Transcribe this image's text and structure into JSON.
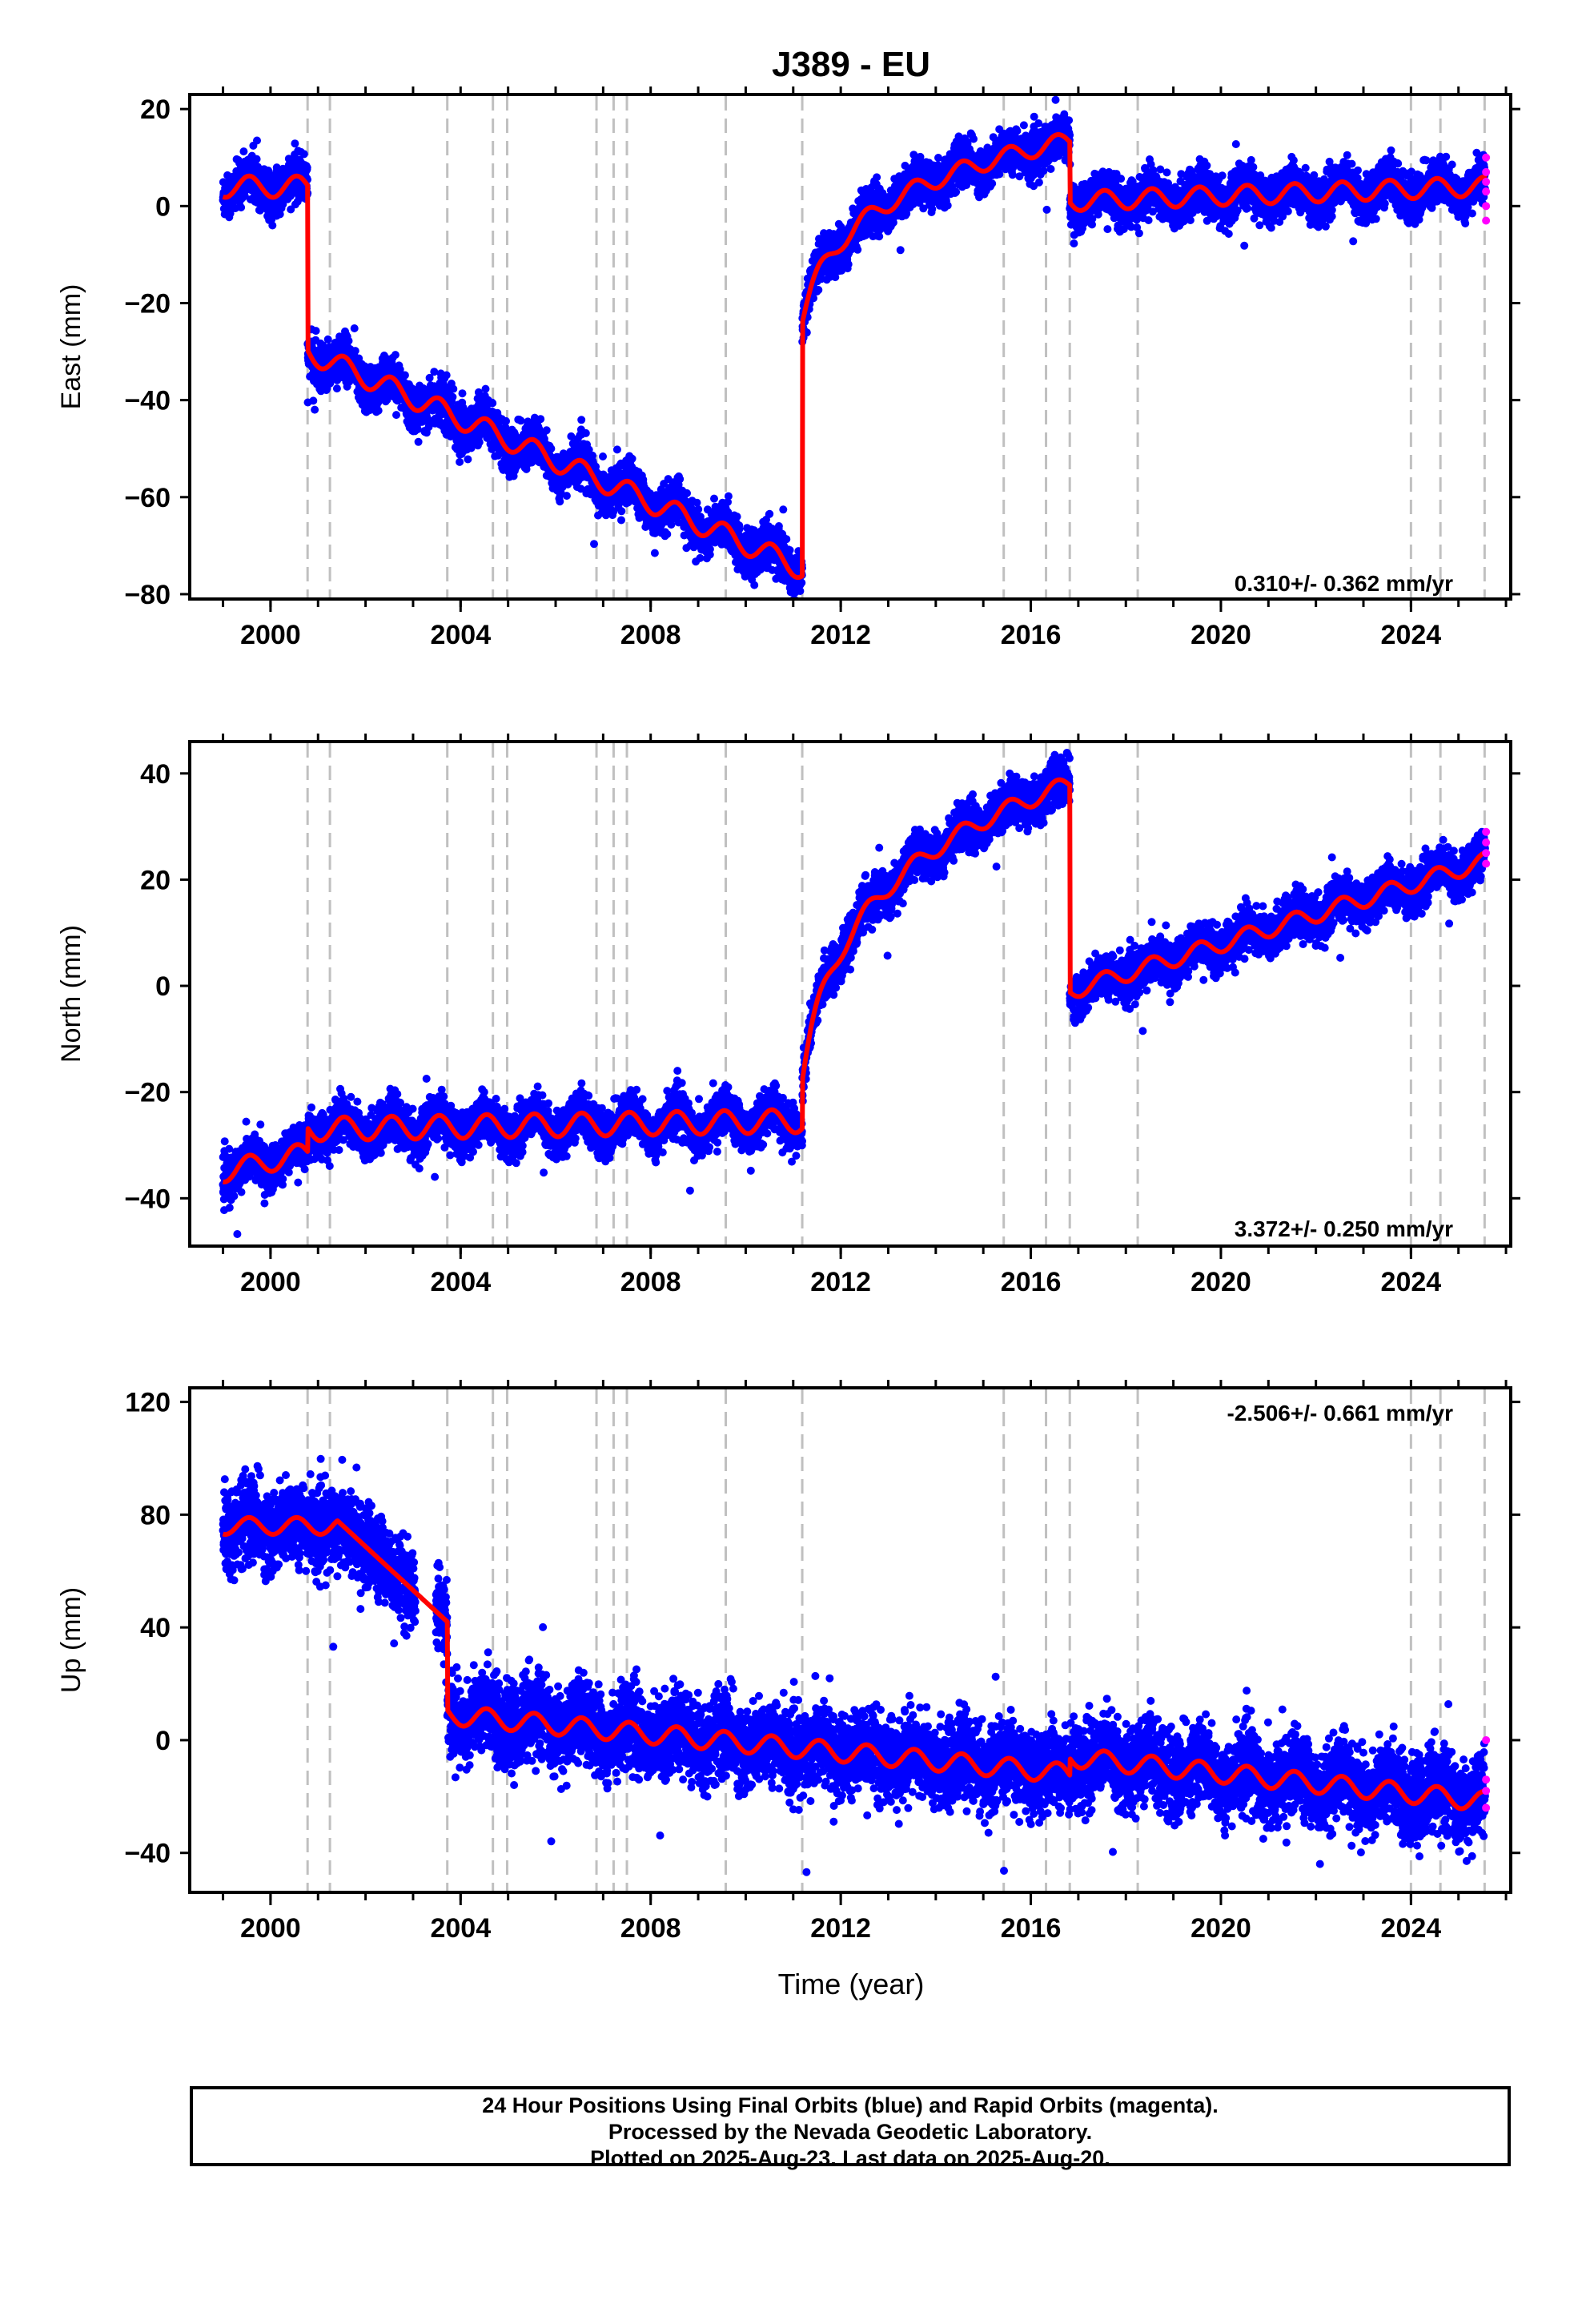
{
  "title": "J389 - EU",
  "xlabel": "Time (year)",
  "caption": [
    "24 Hour Positions Using Final Orbits (blue) and Rapid Orbits (magenta).",
    "Processed by the Nevada Geodetic Laboratory.",
    "Plotted on 2025-Aug-23. Last data on 2025-Aug-20."
  ],
  "colors": {
    "final": "#0000ff",
    "rapid": "#ff00ff",
    "model": "#ff0000",
    "steps": "#c0c0c0"
  },
  "chart_data": [
    {
      "type": "scatter",
      "panel": "East",
      "ylabel": "East (mm)",
      "rate_label": "0.310+/- 0.362 mm/yr",
      "xlim": [
        1998.3,
        2026.1
      ],
      "ylim": [
        -81,
        23
      ],
      "yticks": [
        20,
        0,
        -20,
        -40,
        -60,
        -80
      ],
      "xticks": [
        2000,
        2004,
        2008,
        2012,
        2016,
        2020,
        2024
      ],
      "step_epochs": [
        2000.78,
        2001.25,
        2003.72,
        2004.68,
        2004.98,
        2006.86,
        2007.22,
        2007.5,
        2009.58,
        2011.19,
        2015.43,
        2016.32,
        2016.82,
        2018.25,
        2024.0,
        2024.62,
        2025.55
      ],
      "model_segments": [
        {
          "x0": 1999.0,
          "x1": 2000.78,
          "base0": 4.0,
          "slope": 0.0,
          "amp": 2.2
        },
        {
          "x0": 2000.78,
          "x1": 2011.19,
          "base0": -30.0,
          "slope": -4.3,
          "amp": 2.3
        },
        {
          "x0": 2011.19,
          "x1": 2016.82,
          "start": -23.0,
          "end": 13.5,
          "curve": "log",
          "amp": 1.8
        },
        {
          "x0": 2016.82,
          "x1": 2025.6,
          "base0": 1.0,
          "slope": 0.35,
          "amp": 2.0
        }
      ],
      "noise": 2.2,
      "rapid_points": [
        [
          2025.58,
          10
        ],
        [
          2025.58,
          7
        ],
        [
          2025.58,
          3
        ],
        [
          2025.58,
          0
        ],
        [
          2025.58,
          -3
        ],
        [
          2025.58,
          5
        ]
      ]
    },
    {
      "type": "scatter",
      "panel": "North",
      "ylabel": "North (mm)",
      "rate_label": "3.372+/- 0.250 mm/yr",
      "xlim": [
        1998.3,
        2026.1
      ],
      "ylim": [
        -49,
        46
      ],
      "yticks": [
        40,
        20,
        0,
        -20,
        -40
      ],
      "xticks": [
        2000,
        2004,
        2008,
        2012,
        2016,
        2020,
        2024
      ],
      "step_epochs": [
        2000.78,
        2001.25,
        2003.72,
        2004.68,
        2004.98,
        2006.86,
        2007.22,
        2007.5,
        2009.58,
        2011.19,
        2015.43,
        2016.32,
        2016.82,
        2018.25,
        2024.0,
        2024.62,
        2025.55
      ],
      "model_segments": [
        {
          "x0": 1999.0,
          "x1": 2000.78,
          "base0": -35.0,
          "slope": 2.0,
          "amp": 2.0
        },
        {
          "x0": 2000.78,
          "x1": 2011.19,
          "base0": -27.0,
          "slope": 0.15,
          "amp": 2.2
        },
        {
          "x0": 2011.19,
          "x1": 2016.82,
          "start": -17.0,
          "end": 38.0,
          "curve": "log",
          "amp": 1.6
        },
        {
          "x0": 2016.82,
          "x1": 2025.6,
          "base0": -1.0,
          "slope": 2.8,
          "amp": 1.6
        }
      ],
      "noise": 2.0,
      "rapid_points": [
        [
          2025.58,
          29
        ],
        [
          2025.58,
          27
        ],
        [
          2025.58,
          25
        ],
        [
          2025.58,
          23
        ]
      ]
    },
    {
      "type": "scatter",
      "panel": "Up",
      "ylabel": "Up (mm)",
      "rate_label": "-2.506+/- 0.661 mm/yr",
      "xlim": [
        1998.3,
        2026.1
      ],
      "ylim": [
        -54,
        125
      ],
      "yticks": [
        120,
        80,
        40,
        0,
        -40
      ],
      "xticks": [
        2000,
        2004,
        2008,
        2012,
        2016,
        2020,
        2024
      ],
      "step_epochs": [
        2000.78,
        2001.25,
        2003.72,
        2004.68,
        2004.98,
        2006.86,
        2007.22,
        2007.5,
        2009.58,
        2011.19,
        2015.43,
        2016.32,
        2016.82,
        2018.25,
        2024.0,
        2024.62,
        2025.55
      ],
      "model_segments": [
        {
          "x0": 1999.0,
          "x1": 2001.4,
          "base0": 76.0,
          "slope": 0.0,
          "amp": 3.0
        },
        {
          "x0": 2001.4,
          "x1": 2003.72,
          "start": 78.0,
          "end": 42.0,
          "curve": "lin",
          "amp": 0.0
        },
        {
          "x0": 2003.72,
          "x1": 2016.82,
          "base0": 9.0,
          "slope": -1.6,
          "amp": 3.5
        },
        {
          "x0": 2016.82,
          "x1": 2025.6,
          "base0": -6.0,
          "slope": -1.8,
          "amp": 3.5
        }
      ],
      "noise": 7.0,
      "gap": [
        2003.05,
        2003.48
      ],
      "rapid_points": [
        [
          2025.58,
          0
        ],
        [
          2025.58,
          -14
        ],
        [
          2025.58,
          -18
        ],
        [
          2025.58,
          -24
        ]
      ]
    }
  ]
}
